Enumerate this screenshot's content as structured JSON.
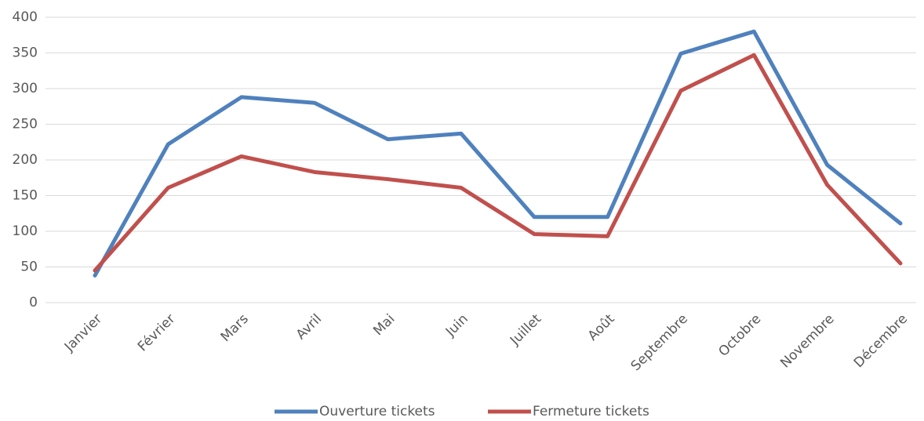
{
  "chart_data": {
    "type": "line",
    "categories": [
      "Janvier",
      "Février",
      "Mars",
      "Avril",
      "Mai",
      "Juin",
      "Juillet",
      "Août",
      "Septembre",
      "Octobre",
      "Novembre",
      "Décembre"
    ],
    "series": [
      {
        "name": "Ouverture tickets",
        "color": "#4f81bd",
        "values": [
          38,
          222,
          288,
          280,
          229,
          237,
          120,
          120,
          349,
          380,
          193,
          111
        ]
      },
      {
        "name": "Fermeture tickets",
        "color": "#c0504d",
        "values": [
          45,
          161,
          205,
          183,
          173,
          161,
          96,
          93,
          297,
          347,
          165,
          55
        ]
      }
    ],
    "ylim": [
      0,
      400
    ],
    "yticks": [
      0,
      50,
      100,
      150,
      200,
      250,
      300,
      350,
      400
    ],
    "grid": true,
    "legend": "bottom"
  }
}
